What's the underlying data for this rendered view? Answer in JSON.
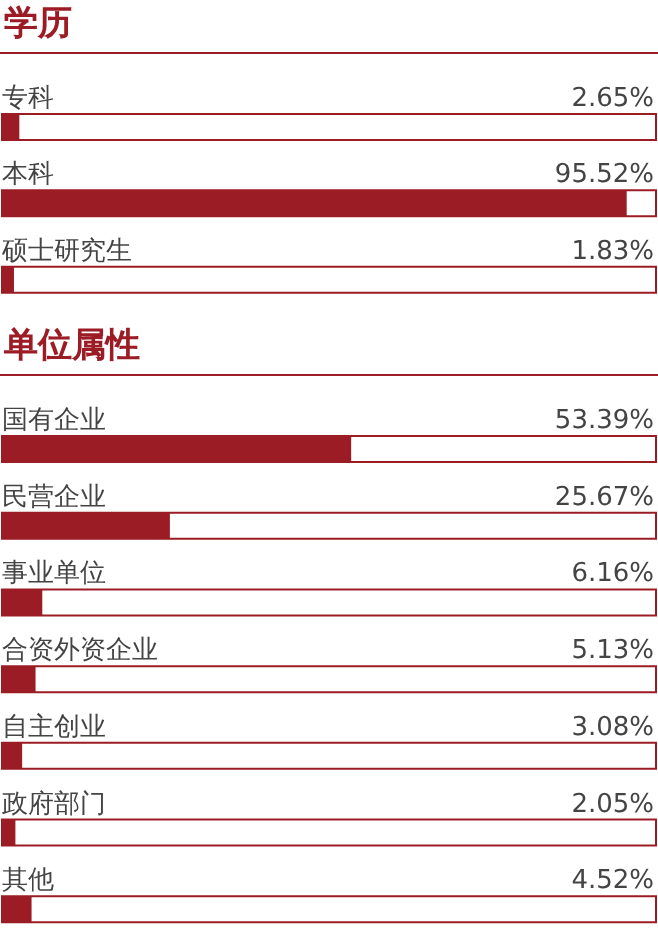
{
  "chart_data": [
    {
      "type": "bar",
      "title": "学历",
      "orientation": "horizontal",
      "categories": [
        "专科",
        "本科",
        "硕士研究生"
      ],
      "values": [
        2.65,
        95.52,
        1.83
      ],
      "value_labels": [
        "2.65%",
        "95.52%",
        "1.83%"
      ],
      "color": "#9b1c24",
      "xlim": [
        0,
        100
      ],
      "tick_labels": false
    },
    {
      "type": "bar",
      "title": "单位属性",
      "orientation": "horizontal",
      "categories": [
        "国有企业",
        "民营企业",
        "事业单位",
        "合资外资企业",
        "自主创业",
        "政府部门",
        "其他"
      ],
      "values": [
        53.39,
        25.67,
        6.16,
        5.13,
        3.08,
        2.05,
        4.52
      ],
      "value_labels": [
        "53.39%",
        "25.67%",
        "6.16%",
        "5.13%",
        "3.08%",
        "2.05%",
        "4.52%"
      ],
      "color": "#9b1c24",
      "xlim": [
        0,
        100
      ],
      "tick_labels": false
    }
  ]
}
